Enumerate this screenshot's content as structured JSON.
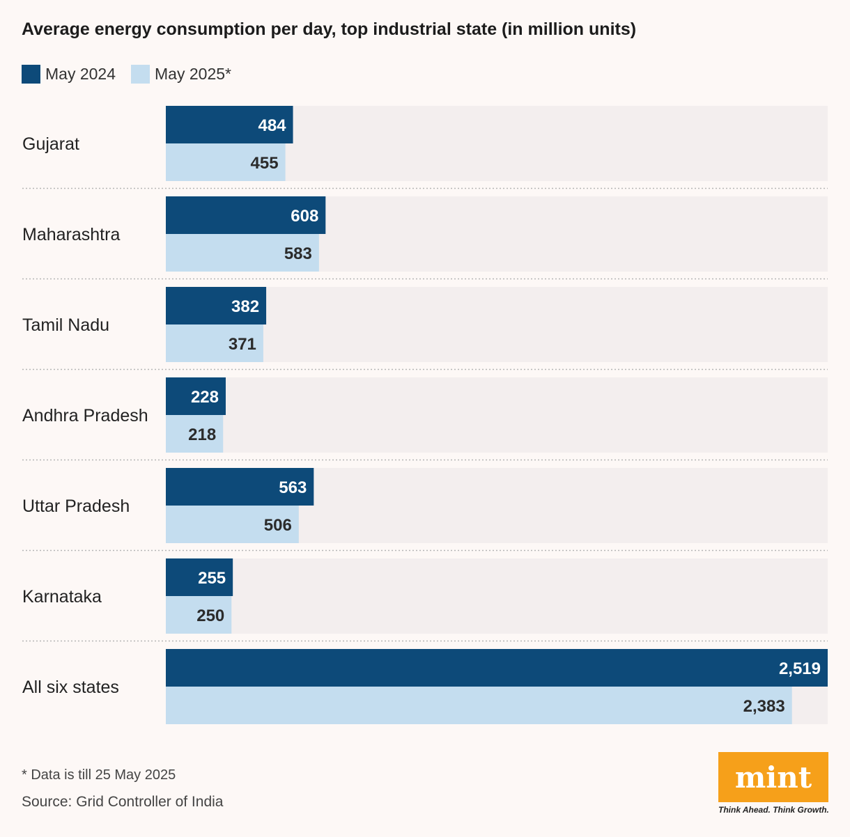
{
  "chart_data": {
    "type": "bar",
    "orientation": "horizontal",
    "title": "Average energy consumption per day, top industrial state (in million units)",
    "categories": [
      "Gujarat",
      "Maharashtra",
      "Tamil Nadu",
      "Andhra Pradesh",
      "Uttar Pradesh",
      "Karnataka",
      "All six states"
    ],
    "series": [
      {
        "name": "May 2024",
        "color": "#0d4a79",
        "values": [
          484,
          608,
          382,
          228,
          563,
          255,
          2519
        ],
        "labels": [
          "484",
          "608",
          "382",
          "228",
          "563",
          "255",
          "2,519"
        ]
      },
      {
        "name": "May 2025*",
        "color": "#c4ddef",
        "values": [
          455,
          583,
          371,
          218,
          506,
          250,
          2383
        ],
        "labels": [
          "455",
          "583",
          "371",
          "218",
          "506",
          "250",
          "2,383"
        ]
      }
    ],
    "xlim": [
      0,
      2519
    ],
    "xlabel": "",
    "ylabel": "",
    "grid": false,
    "legend": "top-left",
    "track_color": "#f3eeee"
  },
  "footnote": "* Data is till 25 May 2025",
  "source": "Source: Grid Controller of India",
  "brand": {
    "logo_text": "mint",
    "tagline": "Think Ahead. Think Growth.",
    "color": "#f6a01a"
  }
}
